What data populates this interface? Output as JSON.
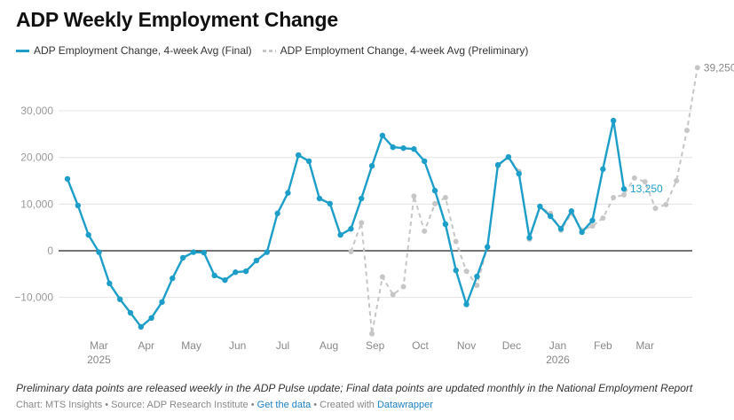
{
  "chart_data": {
    "type": "line",
    "title": "ADP Weekly Employment Change",
    "xlabel": "",
    "ylabel": "",
    "ylim": [
      -17500,
      40000
    ],
    "grid": true,
    "legend_placement": "top-left",
    "y_ticks": [
      {
        "value": 30000,
        "label": "30,000"
      },
      {
        "value": 20000,
        "label": "20,000"
      },
      {
        "value": 10000,
        "label": "10,000"
      },
      {
        "value": 0,
        "label": "0"
      },
      {
        "value": -10000,
        "label": "−10,000"
      }
    ],
    "x_ticks": [
      {
        "week": 3,
        "label": "Mar",
        "sub": "2025"
      },
      {
        "week": 7.5,
        "label": "Apr",
        "sub": ""
      },
      {
        "week": 11.8,
        "label": "May",
        "sub": ""
      },
      {
        "week": 16.2,
        "label": "Jun",
        "sub": ""
      },
      {
        "week": 20.5,
        "label": "Jul",
        "sub": ""
      },
      {
        "week": 24.9,
        "label": "Aug",
        "sub": ""
      },
      {
        "week": 29.3,
        "label": "Sep",
        "sub": ""
      },
      {
        "week": 33.6,
        "label": "Oct",
        "sub": ""
      },
      {
        "week": 38,
        "label": "Nov",
        "sub": ""
      },
      {
        "week": 42.3,
        "label": "Dec",
        "sub": ""
      },
      {
        "week": 46.7,
        "label": "Jan",
        "sub": "2026"
      },
      {
        "week": 51,
        "label": "Feb",
        "sub": ""
      },
      {
        "week": 55,
        "label": "Mar",
        "sub": ""
      }
    ],
    "series": [
      {
        "name": "ADP Employment Change, 4-week Avg (Final)",
        "color": "#1d9ec9",
        "style": "solid",
        "start_week": 0,
        "values": [
          15400,
          9700,
          3400,
          -300,
          -7000,
          -10400,
          -13300,
          -16300,
          -14400,
          -11000,
          -5900,
          -1500,
          -300,
          -400,
          -5300,
          -6300,
          -4600,
          -4400,
          -2100,
          -300,
          8000,
          12400,
          20500,
          19200,
          11200,
          10100,
          3400,
          4700,
          11200,
          18200,
          24700,
          22200,
          22000,
          21800,
          19200,
          12900,
          5700,
          -4200,
          -11500,
          -5500,
          800,
          18400,
          20100,
          16500,
          2800,
          9500,
          7400,
          4700,
          8500,
          4000,
          6500,
          17500,
          27900,
          13250
        ],
        "end_label": "13,250"
      },
      {
        "name": "ADP Employment Change, 4-week Avg (Preliminary)",
        "color": "#c6c6c6",
        "style": "dashed",
        "start_week": 27,
        "values": [
          -200,
          6000,
          -17800,
          -5600,
          -9400,
          -7700,
          11700,
          4200,
          10100,
          11400,
          2000,
          -4400,
          -7400,
          900,
          18200,
          20100,
          17000,
          2500,
          9500,
          8000,
          4400,
          8000,
          4400,
          5300,
          7000,
          11400,
          12000,
          15600,
          14800,
          9100,
          9900,
          15000,
          25800,
          39250
        ],
        "end_label": "39,250"
      }
    ]
  },
  "notes": "Preliminary data points are released weekly in the ADP Pulse update; Final data points are updated monthly in the National Employment Report",
  "footer": {
    "chart_by": "Chart: MTS Insights",
    "sep1": " • ",
    "source": "Source: ADP Research Institute",
    "sep2": " • ",
    "get_data": "Get the data",
    "sep3": " • ",
    "created_with": "Created with ",
    "datawrapper": "Datawrapper"
  }
}
